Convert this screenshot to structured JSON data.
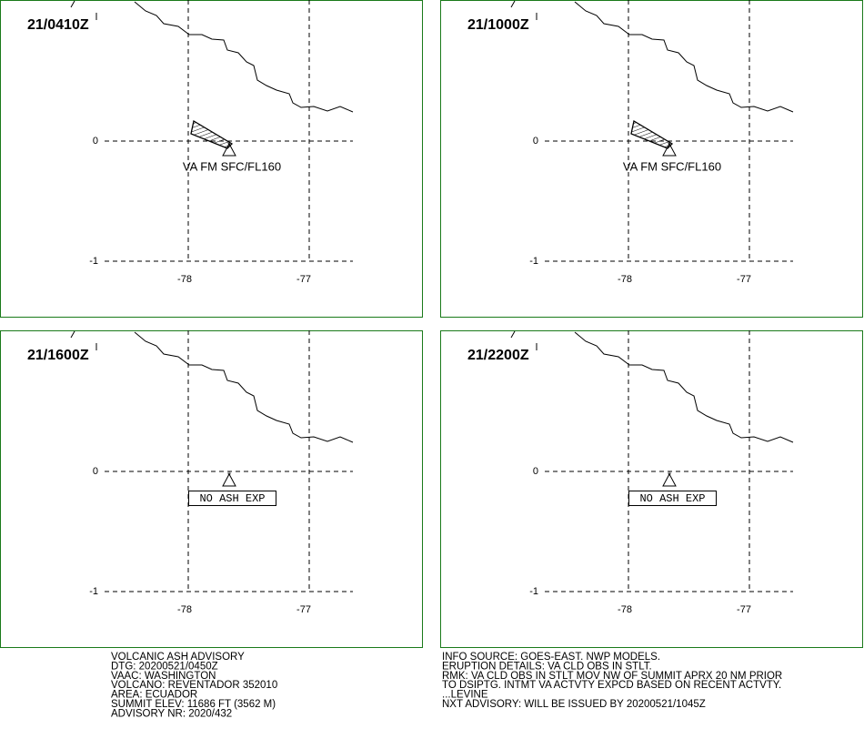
{
  "panels": [
    {
      "time": "21/0410Z",
      "label": "VA FM SFC/FL160",
      "ash_cloud": true
    },
    {
      "time": "21/1000Z",
      "label": "VA FM SFC/FL160",
      "ash_cloud": true
    },
    {
      "time": "21/1600Z",
      "label": "NO ASH EXP",
      "ash_cloud": false
    },
    {
      "time": "21/2200Z",
      "label": "NO ASH EXP",
      "ash_cloud": false
    }
  ],
  "grid": {
    "lat_labels": [
      "0",
      "-1"
    ],
    "lon_labels": [
      "-78",
      "-77"
    ]
  },
  "advisory": {
    "left": [
      "VOLCANIC ASH ADVISORY",
      "DTG: 20200521/0450Z",
      "VAAC: WASHINGTON",
      "VOLCANO: REVENTADOR 352010",
      "AREA: ECUADOR",
      "SUMMIT ELEV: 11686 FT (3562 M)",
      "ADVISORY NR: 2020/432"
    ],
    "right": [
      "INFO SOURCE: GOES-EAST. NWP MODELS.",
      "ERUPTION DETAILS: VA CLD OBS IN STLT.",
      "RMK: VA CLD OBS IN STLT MOV NW OF SUMMIT APRX 20 NM PRIOR",
      "TO DSIPTG. INTMT VA ACTVTY EXPCD BASED ON RECENT ACTVTY.",
      "...LEVINE",
      "NXT ADVISORY: WILL BE ISSUED BY 20200521/1045Z"
    ]
  }
}
